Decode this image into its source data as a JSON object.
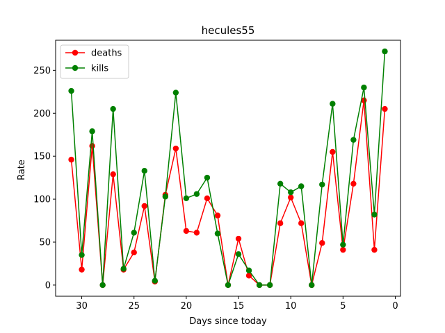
{
  "chart_data": {
    "type": "line",
    "title": "hecules55",
    "xlabel": "Days since today",
    "ylabel": "Rate",
    "xlim": [
      32.5,
      -0.5
    ],
    "ylim": [
      -13,
      285
    ],
    "xticks": [
      30,
      25,
      20,
      15,
      10,
      5,
      0
    ],
    "yticks": [
      0,
      50,
      100,
      150,
      200,
      250
    ],
    "grid": false,
    "legend_position": "top-left",
    "x": [
      31,
      30,
      29,
      28,
      27,
      26,
      25,
      24,
      23,
      22,
      21,
      20,
      19,
      18,
      17,
      16,
      15,
      14,
      13,
      12,
      11,
      10,
      9,
      8,
      7,
      6,
      5,
      4,
      3,
      2,
      1
    ],
    "series": [
      {
        "name": "deaths",
        "color": "#ff0000",
        "marker": "circle",
        "values": [
          146,
          18,
          162,
          0,
          129,
          18,
          38,
          92,
          4,
          105,
          159,
          63,
          61,
          101,
          81,
          0,
          54,
          11,
          0,
          0,
          72,
          102,
          72,
          0,
          49,
          155,
          41,
          118,
          215,
          41,
          205
        ]
      },
      {
        "name": "kills",
        "color": "#008000",
        "marker": "circle",
        "values": [
          226,
          35,
          179,
          0,
          205,
          19,
          61,
          133,
          5,
          103,
          224,
          101,
          106,
          125,
          60,
          0,
          36,
          17,
          0,
          0,
          118,
          108,
          115,
          0,
          117,
          211,
          47,
          169,
          230,
          82,
          272
        ]
      }
    ]
  }
}
